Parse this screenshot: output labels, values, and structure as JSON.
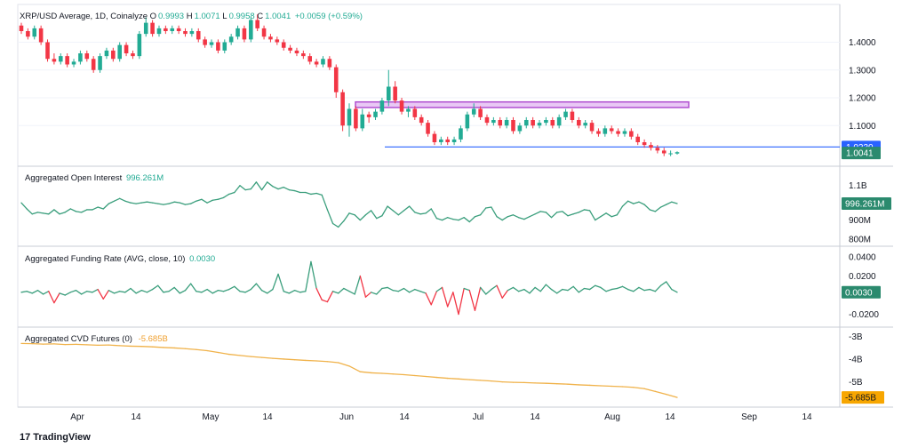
{
  "colors": {
    "up": "#22ab94",
    "down": "#f23645",
    "grid": "#e0e3eb",
    "text": "#131722",
    "blue": "#2962ff",
    "purple": "#d69cf0",
    "cvd": "#f0b24a",
    "ind": "#3a9e7c"
  },
  "header": {
    "symbol": "XRP/USD Average, 1D, Coinalyze",
    "o_label": "O",
    "o_val": "0.9993",
    "h_label": "H",
    "h_val": "1.0071",
    "l_label": "L",
    "l_val": "0.9958",
    "c_label": "C",
    "c_val": "1.0041",
    "change": "+0.0059 (+0.59%)"
  },
  "panes": {
    "oi": {
      "title": "Aggregated Open Interest",
      "value": "996.261M"
    },
    "fr": {
      "title": "Aggregated Funding Rate (AVG, close, 10)",
      "value": "0.0030"
    },
    "cvd": {
      "title": "Aggregated CVD Futures (0)",
      "value": "-5.685B"
    }
  },
  "chart_data": [
    {
      "type": "candlestick",
      "title": "XRP/USD Average, 1D, Coinalyze",
      "y_ticks": [
        "1.4000",
        "1.3000",
        "1.2000",
        "1.1000"
      ],
      "last_price": "1.0041",
      "horizontal_line": {
        "value": "1.0230"
      },
      "zone": {
        "from": 1.165,
        "to": 1.185
      },
      "ohlc": [
        [
          1.46,
          1.47,
          1.43,
          1.44
        ],
        [
          1.44,
          1.45,
          1.41,
          1.42
        ],
        [
          1.42,
          1.46,
          1.41,
          1.45
        ],
        [
          1.45,
          1.46,
          1.39,
          1.4
        ],
        [
          1.4,
          1.41,
          1.33,
          1.34
        ],
        [
          1.34,
          1.36,
          1.32,
          1.33
        ],
        [
          1.33,
          1.36,
          1.32,
          1.35
        ],
        [
          1.35,
          1.36,
          1.31,
          1.32
        ],
        [
          1.32,
          1.34,
          1.31,
          1.33
        ],
        [
          1.33,
          1.37,
          1.32,
          1.36
        ],
        [
          1.36,
          1.37,
          1.33,
          1.34
        ],
        [
          1.34,
          1.35,
          1.29,
          1.3
        ],
        [
          1.3,
          1.36,
          1.29,
          1.35
        ],
        [
          1.35,
          1.38,
          1.34,
          1.37
        ],
        [
          1.37,
          1.38,
          1.33,
          1.34
        ],
        [
          1.34,
          1.4,
          1.33,
          1.39
        ],
        [
          1.39,
          1.4,
          1.35,
          1.36
        ],
        [
          1.36,
          1.37,
          1.34,
          1.35
        ],
        [
          1.35,
          1.44,
          1.34,
          1.43
        ],
        [
          1.43,
          1.49,
          1.42,
          1.47
        ],
        [
          1.47,
          1.48,
          1.42,
          1.43
        ],
        [
          1.43,
          1.46,
          1.42,
          1.45
        ],
        [
          1.45,
          1.46,
          1.43,
          1.44
        ],
        [
          1.44,
          1.46,
          1.43,
          1.45
        ],
        [
          1.45,
          1.46,
          1.43,
          1.44
        ],
        [
          1.44,
          1.45,
          1.42,
          1.43
        ],
        [
          1.43,
          1.45,
          1.42,
          1.44
        ],
        [
          1.44,
          1.45,
          1.4,
          1.41
        ],
        [
          1.41,
          1.42,
          1.38,
          1.39
        ],
        [
          1.39,
          1.41,
          1.38,
          1.4
        ],
        [
          1.4,
          1.41,
          1.36,
          1.37
        ],
        [
          1.37,
          1.41,
          1.36,
          1.4
        ],
        [
          1.4,
          1.43,
          1.39,
          1.42
        ],
        [
          1.42,
          1.46,
          1.41,
          1.45
        ],
        [
          1.45,
          1.46,
          1.4,
          1.41
        ],
        [
          1.41,
          1.49,
          1.4,
          1.48
        ],
        [
          1.48,
          1.5,
          1.44,
          1.45
        ],
        [
          1.45,
          1.46,
          1.41,
          1.42
        ],
        [
          1.42,
          1.43,
          1.4,
          1.41
        ],
        [
          1.41,
          1.42,
          1.39,
          1.4
        ],
        [
          1.4,
          1.41,
          1.37,
          1.38
        ],
        [
          1.38,
          1.39,
          1.36,
          1.37
        ],
        [
          1.37,
          1.38,
          1.35,
          1.36
        ],
        [
          1.36,
          1.37,
          1.34,
          1.35
        ],
        [
          1.35,
          1.36,
          1.32,
          1.33
        ],
        [
          1.33,
          1.34,
          1.31,
          1.32
        ],
        [
          1.32,
          1.35,
          1.31,
          1.34
        ],
        [
          1.34,
          1.35,
          1.3,
          1.31
        ],
        [
          1.31,
          1.32,
          1.2,
          1.22
        ],
        [
          1.22,
          1.23,
          1.08,
          1.1
        ],
        [
          1.1,
          1.18,
          1.06,
          1.16
        ],
        [
          1.16,
          1.17,
          1.08,
          1.09
        ],
        [
          1.09,
          1.16,
          1.08,
          1.14
        ],
        [
          1.14,
          1.15,
          1.11,
          1.13
        ],
        [
          1.13,
          1.16,
          1.12,
          1.15
        ],
        [
          1.15,
          1.2,
          1.14,
          1.19
        ],
        [
          1.19,
          1.3,
          1.17,
          1.24
        ],
        [
          1.24,
          1.26,
          1.18,
          1.19
        ],
        [
          1.19,
          1.2,
          1.14,
          1.15
        ],
        [
          1.15,
          1.17,
          1.13,
          1.16
        ],
        [
          1.16,
          1.17,
          1.12,
          1.13
        ],
        [
          1.13,
          1.14,
          1.1,
          1.11
        ],
        [
          1.11,
          1.12,
          1.06,
          1.07
        ],
        [
          1.07,
          1.08,
          1.03,
          1.04
        ],
        [
          1.04,
          1.06,
          1.03,
          1.05
        ],
        [
          1.05,
          1.06,
          1.03,
          1.04
        ],
        [
          1.04,
          1.06,
          1.03,
          1.05
        ],
        [
          1.05,
          1.1,
          1.04,
          1.09
        ],
        [
          1.09,
          1.15,
          1.08,
          1.14
        ],
        [
          1.14,
          1.18,
          1.13,
          1.16
        ],
        [
          1.16,
          1.17,
          1.12,
          1.13
        ],
        [
          1.13,
          1.14,
          1.1,
          1.11
        ],
        [
          1.11,
          1.13,
          1.1,
          1.12
        ],
        [
          1.12,
          1.13,
          1.09,
          1.1
        ],
        [
          1.1,
          1.13,
          1.09,
          1.12
        ],
        [
          1.12,
          1.13,
          1.07,
          1.08
        ],
        [
          1.08,
          1.11,
          1.07,
          1.1
        ],
        [
          1.1,
          1.13,
          1.09,
          1.12
        ],
        [
          1.12,
          1.13,
          1.09,
          1.1
        ],
        [
          1.1,
          1.12,
          1.09,
          1.11
        ],
        [
          1.11,
          1.13,
          1.1,
          1.12
        ],
        [
          1.12,
          1.13,
          1.09,
          1.1
        ],
        [
          1.1,
          1.14,
          1.09,
          1.13
        ],
        [
          1.13,
          1.16,
          1.12,
          1.15
        ],
        [
          1.15,
          1.16,
          1.11,
          1.12
        ],
        [
          1.12,
          1.13,
          1.09,
          1.1
        ],
        [
          1.1,
          1.12,
          1.09,
          1.11
        ],
        [
          1.11,
          1.12,
          1.07,
          1.08
        ],
        [
          1.08,
          1.09,
          1.06,
          1.07
        ],
        [
          1.07,
          1.1,
          1.06,
          1.09
        ],
        [
          1.09,
          1.1,
          1.07,
          1.08
        ],
        [
          1.08,
          1.09,
          1.06,
          1.07
        ],
        [
          1.07,
          1.09,
          1.06,
          1.08
        ],
        [
          1.08,
          1.09,
          1.05,
          1.06
        ],
        [
          1.06,
          1.07,
          1.03,
          1.04
        ],
        [
          1.04,
          1.05,
          1.02,
          1.03
        ],
        [
          1.03,
          1.04,
          1.01,
          1.02
        ],
        [
          1.02,
          1.03,
          1.0,
          1.01
        ],
        [
          1.01,
          1.02,
          0.99,
          1.0
        ],
        [
          1.0,
          1.01,
          0.99,
          1.0
        ],
        [
          0.9993,
          1.0071,
          0.9958,
          1.0041
        ]
      ]
    },
    {
      "type": "line",
      "name": "Aggregated Open Interest",
      "y_ticks": [
        "1.1B",
        "900M",
        "800M"
      ],
      "last": "996.261M",
      "values": [
        1000,
        965,
        935,
        945,
        940,
        935,
        960,
        935,
        945,
        965,
        950,
        945,
        960,
        960,
        975,
        965,
        995,
        1010,
        1025,
        1010,
        1000,
        995,
        1000,
        1005,
        1000,
        995,
        990,
        995,
        1005,
        1000,
        990,
        995,
        1010,
        1020,
        1000,
        1015,
        1020,
        1030,
        1050,
        1060,
        1100,
        1075,
        1080,
        1120,
        1075,
        1120,
        1095,
        1080,
        1090,
        1075,
        1070,
        1060,
        1060,
        1050,
        1055,
        1045,
        960,
        880,
        860,
        895,
        940,
        930,
        900,
        930,
        955,
        910,
        925,
        980,
        955,
        930,
        955,
        980,
        945,
        935,
        940,
        965,
        910,
        900,
        915,
        905,
        900,
        915,
        890,
        920,
        930,
        970,
        975,
        920,
        900,
        920,
        930,
        915,
        905,
        920,
        935,
        950,
        945,
        915,
        945,
        950,
        925,
        935,
        945,
        960,
        955,
        900,
        920,
        940,
        920,
        930,
        980,
        1010,
        995,
        1005,
        990,
        960,
        950,
        975,
        990,
        1005,
        996
      ]
    },
    {
      "type": "line",
      "name": "Aggregated Funding Rate (AVG, close, 10)",
      "y_ticks": [
        "0.0400",
        "0.0200",
        "-0.0200"
      ],
      "last": "0.0030",
      "values": [
        0.003,
        0.004,
        0.002,
        0.005,
        0.001,
        0.004,
        -0.008,
        0.002,
        0.0,
        0.003,
        0.005,
        0.001,
        0.004,
        0.003,
        0.006,
        -0.004,
        0.005,
        0.002,
        0.004,
        0.003,
        0.007,
        0.002,
        0.005,
        0.003,
        0.006,
        0.01,
        0.003,
        0.004,
        0.008,
        0.002,
        0.005,
        0.012,
        0.004,
        0.003,
        0.006,
        0.002,
        0.005,
        0.004,
        0.006,
        0.009,
        0.004,
        0.003,
        0.006,
        0.012,
        0.005,
        0.002,
        0.006,
        0.022,
        0.004,
        0.002,
        0.005,
        0.003,
        0.004,
        0.035,
        0.007,
        -0.005,
        -0.007,
        0.004,
        0.002,
        0.007,
        0.004,
        0.001,
        0.02,
        -0.002,
        0.003,
        0.001,
        0.007,
        0.008,
        0.005,
        0.004,
        0.007,
        0.003,
        0.006,
        0.004,
        0.002,
        -0.01,
        0.004,
        0.008,
        -0.012,
        0.003,
        -0.02,
        0.007,
        0.005,
        -0.016,
        0.008,
        0.001,
        0.006,
        0.01,
        -0.003,
        0.005,
        0.008,
        0.004,
        0.006,
        0.002,
        0.008,
        0.004,
        0.011,
        0.006,
        0.002,
        0.006,
        0.005,
        0.009,
        0.003,
        0.007,
        0.006,
        0.01,
        0.008,
        0.004,
        0.006,
        0.007,
        0.009,
        0.006,
        0.004,
        0.008,
        0.005,
        0.006,
        0.004,
        0.01,
        0.014,
        0.006,
        0.003
      ]
    },
    {
      "type": "line",
      "name": "Aggregated CVD Futures (0)",
      "y_ticks": [
        "-3B",
        "-4B",
        "-5B"
      ],
      "last": "-5.685B",
      "values": [
        -3.3,
        -3.31,
        -3.33,
        -3.32,
        -3.35,
        -3.34,
        -3.36,
        -3.38,
        -3.37,
        -3.4,
        -3.42,
        -3.43,
        -3.45,
        -3.48,
        -3.5,
        -3.53,
        -3.57,
        -3.62,
        -3.7,
        -3.78,
        -3.83,
        -3.88,
        -3.92,
        -3.96,
        -3.99,
        -4.02,
        -4.05,
        -4.07,
        -4.1,
        -4.15,
        -4.3,
        -4.55,
        -4.6,
        -4.62,
        -4.65,
        -4.68,
        -4.72,
        -4.76,
        -4.8,
        -4.84,
        -4.87,
        -4.9,
        -4.93,
        -4.96,
        -5.0,
        -5.02,
        -5.03,
        -5.05,
        -5.06,
        -5.08,
        -5.1,
        -5.13,
        -5.15,
        -5.17,
        -5.19,
        -5.21,
        -5.24,
        -5.3,
        -5.42,
        -5.55,
        -5.685
      ]
    }
  ],
  "x_axis": {
    "labels": [
      "Apr",
      "14",
      "May",
      "14",
      "Jun",
      "14",
      "Jul",
      "14",
      "Aug",
      "14",
      "Sep",
      "14"
    ]
  },
  "badges": {
    "blue_line": "1.0230",
    "last_price": "1.0041"
  },
  "footer": {
    "brand": "TradingView"
  }
}
